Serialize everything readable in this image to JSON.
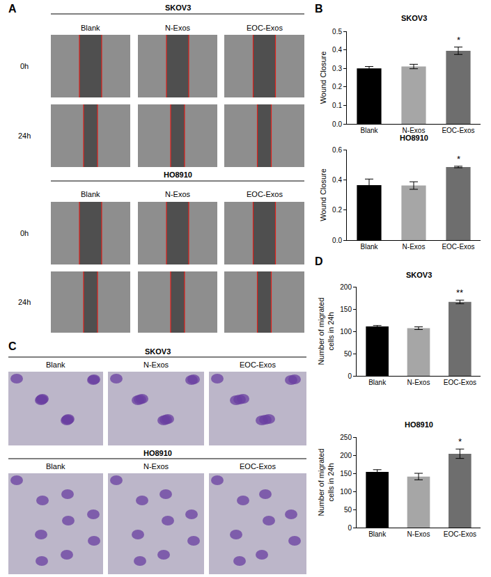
{
  "image_panels": [
    {
      "label": "A",
      "groups": [
        {
          "title": "SKOV3",
          "columns": [
            "Blank",
            "N-Exos",
            "EOC-Exos"
          ],
          "rows": [
            "0h",
            "24h"
          ]
        },
        {
          "title": "HO8910",
          "columns": [
            "Blank",
            "N-Exos",
            "EOC-Exos"
          ],
          "rows": [
            "0h",
            "24h"
          ]
        }
      ]
    },
    {
      "label": "C",
      "groups": [
        {
          "title": "SKOV3",
          "columns": [
            "Blank",
            "N-Exos",
            "EOC-Exos"
          ]
        },
        {
          "title": "HO8910",
          "columns": [
            "Blank",
            "N-Exos",
            "EOC-Exos"
          ]
        }
      ]
    }
  ],
  "chart_panel_labels": [
    "B",
    "D"
  ],
  "chart_data": [
    {
      "type": "bar",
      "title": "SKOV3",
      "categories": [
        "Blank",
        "N-Exos",
        "EOC-Exos"
      ],
      "values": [
        0.3,
        0.31,
        0.395
      ],
      "errors": [
        0.01,
        0.012,
        0.02
      ],
      "colors": [
        "#000000",
        "#a6a6a6",
        "#6e6e6e"
      ],
      "ylabel": [
        "Wound Closure"
      ],
      "ylim": [
        0,
        0.5
      ],
      "yticks": [
        {
          "value": 0,
          "label": "0.0"
        },
        0.1,
        0.2,
        0.3,
        0.4,
        0.5
      ],
      "annotations": [
        {
          "category": "EOC-Exos",
          "text": "*"
        }
      ]
    },
    {
      "type": "bar",
      "title": "HO8910",
      "categories": [
        "Blank",
        "N-Exos",
        "EOC-Exos"
      ],
      "values": [
        0.365,
        0.362,
        0.485
      ],
      "errors": [
        0.04,
        0.025,
        0.005
      ],
      "colors": [
        "#000000",
        "#a6a6a6",
        "#6e6e6e"
      ],
      "ylabel": [
        "Wound Closure"
      ],
      "ylim": [
        0,
        0.6
      ],
      "yticks": [
        {
          "value": 0,
          "label": "0.0"
        },
        0.2,
        0.4,
        0.6
      ],
      "annotations": [
        {
          "category": "EOC-Exos",
          "text": "*"
        }
      ]
    },
    {
      "type": "bar",
      "title": "SKOV3",
      "categories": [
        "Blank",
        "N-Exos",
        "EOC-Exos"
      ],
      "values": [
        111,
        107,
        166
      ],
      "errors": [
        2,
        3,
        4
      ],
      "colors": [
        "#000000",
        "#a6a6a6",
        "#6e6e6e"
      ],
      "ylabel": [
        "Number of migrated",
        "cells in 24h"
      ],
      "ylim": [
        0,
        200
      ],
      "yticks": [
        0,
        50,
        100,
        150,
        200
      ],
      "annotations": [
        {
          "category": "EOC-Exos",
          "text": "**"
        }
      ]
    },
    {
      "type": "bar",
      "title": "HO8910",
      "categories": [
        "Blank",
        "N-Exos",
        "EOC-Exos"
      ],
      "values": [
        154,
        141,
        204
      ],
      "errors": [
        6,
        9,
        13
      ],
      "colors": [
        "#000000",
        "#a6a6a6",
        "#6e6e6e"
      ],
      "ylabel": [
        "Number of migrated",
        "cells in 24h"
      ],
      "ylim": [
        0,
        250
      ],
      "yticks": [
        0,
        50,
        100,
        150,
        200,
        250
      ],
      "annotations": [
        {
          "category": "EOC-Exos",
          "text": "*"
        }
      ]
    }
  ]
}
